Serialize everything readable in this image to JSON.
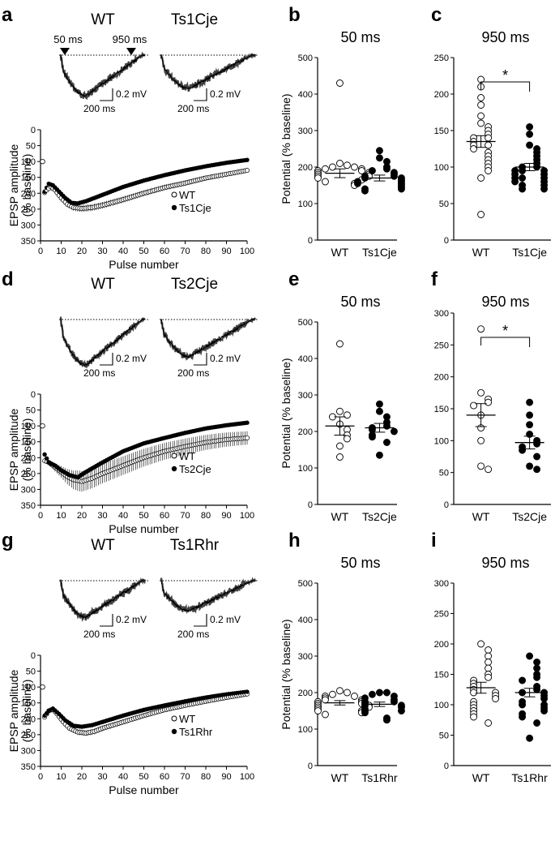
{
  "rows": [
    {
      "ids": [
        "a",
        "b",
        "c"
      ],
      "groups": [
        "WT",
        "Ts1Cje"
      ],
      "markers": [
        "50 ms",
        "950 ms"
      ],
      "scalebar": {
        "v": "0.2 mV",
        "h": "200 ms"
      },
      "dose_response": {
        "type": "line",
        "xlabel": "Pulse number",
        "ylabel": [
          "EPSP amplitude",
          "(% baseline)"
        ],
        "xlim": [
          0,
          100
        ],
        "ylim": [
          350,
          0
        ],
        "xticks": [
          "0",
          "10",
          "20",
          "30",
          "40",
          "50",
          "60",
          "70",
          "80",
          "90",
          "100"
        ],
        "yticks": [
          "0",
          "50",
          "100",
          "150",
          "200",
          "250",
          "300",
          "350"
        ],
        "legend": [
          "WT",
          "Ts1Cje"
        ],
        "series": [
          {
            "name": "WT",
            "values": [
              [
                1,
                100
              ],
              [
                2,
                198
              ],
              [
                3,
                190
              ],
              [
                5,
                180
              ],
              [
                7,
                190
              ],
              [
                10,
                215
              ],
              [
                13,
                235
              ],
              [
                16,
                245
              ],
              [
                20,
                248
              ],
              [
                25,
                245
              ],
              [
                30,
                238
              ],
              [
                40,
                220
              ],
              [
                50,
                200
              ],
              [
                60,
                182
              ],
              [
                70,
                168
              ],
              [
                80,
                152
              ],
              [
                90,
                140
              ],
              [
                100,
                128
              ]
            ]
          },
          {
            "name": "Ts1Cje",
            "values": [
              [
                2,
                195
              ],
              [
                4,
                170
              ],
              [
                6,
                175
              ],
              [
                9,
                195
              ],
              [
                12,
                215
              ],
              [
                15,
                230
              ],
              [
                18,
                232
              ],
              [
                22,
                225
              ],
              [
                30,
                205
              ],
              [
                40,
                180
              ],
              [
                50,
                160
              ],
              [
                60,
                143
              ],
              [
                70,
                128
              ],
              [
                80,
                115
              ],
              [
                90,
                104
              ],
              [
                100,
                95
              ]
            ]
          }
        ]
      },
      "scatter_50": {
        "type": "scatter",
        "title": "50 ms",
        "ylabel": "Potential (% baseline)",
        "categories": [
          "WT",
          "Ts1Cje"
        ],
        "ylim": [
          0,
          500
        ],
        "yticks": [
          "0",
          "100",
          "200",
          "300",
          "400",
          "500"
        ],
        "series": [
          {
            "name": "WT",
            "mean": 183,
            "sem": 12,
            "values": [
              430,
              210,
              205,
              200,
              200,
              195,
              195,
              190,
              190,
              185,
              185,
              180,
              180,
              175,
              175,
              170,
              165,
              160,
              155,
              150
            ]
          },
          {
            "name": "Ts1Cje",
            "mean": 170,
            "sem": 8,
            "values": [
              245,
              225,
              215,
              200,
              195,
              190,
              185,
              180,
              175,
              175,
              170,
              170,
              165,
              160,
              160,
              155,
              155,
              150,
              145,
              140,
              140,
              135
            ]
          }
        ]
      },
      "scatter_950": {
        "type": "scatter",
        "title": "950 ms",
        "ylabel": "",
        "categories": [
          "WT",
          "Ts1Cje"
        ],
        "ylim": [
          0,
          250
        ],
        "yticks": [
          "0",
          "50",
          "100",
          "150",
          "200",
          "250"
        ],
        "significance": "*",
        "series": [
          {
            "name": "WT",
            "mean": 135,
            "sem": 8,
            "values": [
              220,
              210,
              195,
              185,
              170,
              160,
              155,
              150,
              145,
              140,
              140,
              135,
              130,
              130,
              125,
              120,
              115,
              110,
              105,
              100,
              95,
              85,
              35
            ]
          },
          {
            "name": "Ts1Cje",
            "mean": 100,
            "sem": 5,
            "values": [
              155,
              145,
              130,
              125,
              120,
              115,
              110,
              105,
              100,
              100,
              95,
              95,
              95,
              90,
              90,
              85,
              85,
              85,
              80,
              80,
              75,
              75,
              70,
              70
            ]
          }
        ]
      }
    },
    {
      "ids": [
        "d",
        "e",
        "f"
      ],
      "groups": [
        "WT",
        "Ts2Cje"
      ],
      "markers": [],
      "scalebar": {
        "v": "0.2 mV",
        "h": "200 ms"
      },
      "dose_response": {
        "type": "line",
        "xlabel": "Pulse number",
        "ylabel": [
          "EPSP amplitude",
          "(% baseline)"
        ],
        "xlim": [
          0,
          100
        ],
        "ylim": [
          350,
          0
        ],
        "xticks": [
          "0",
          "10",
          "20",
          "30",
          "40",
          "50",
          "60",
          "70",
          "80",
          "90",
          "100"
        ],
        "yticks": [
          "0",
          "50",
          "100",
          "150",
          "200",
          "250",
          "300",
          "350"
        ],
        "legend": [
          "WT",
          "Ts2Cje"
        ],
        "series": [
          {
            "name": "WT",
            "values": [
              [
                1,
                100
              ],
              [
                2,
                210
              ],
              [
                4,
                215
              ],
              [
                7,
                230
              ],
              [
                10,
                245
              ],
              [
                13,
                260
              ],
              [
                16,
                270
              ],
              [
                20,
                275
              ],
              [
                25,
                265
              ],
              [
                30,
                250
              ],
              [
                40,
                225
              ],
              [
                50,
                200
              ],
              [
                60,
                180
              ],
              [
                70,
                165
              ],
              [
                80,
                152
              ],
              [
                90,
                143
              ],
              [
                100,
                138
              ]
            ]
          },
          {
            "name": "Ts2Cje",
            "values": [
              [
                2,
                190
              ],
              [
                4,
                215
              ],
              [
                7,
                225
              ],
              [
                10,
                240
              ],
              [
                14,
                255
              ],
              [
                18,
                262
              ],
              [
                22,
                245
              ],
              [
                30,
                215
              ],
              [
                40,
                180
              ],
              [
                50,
                155
              ],
              [
                60,
                138
              ],
              [
                70,
                122
              ],
              [
                80,
                108
              ],
              [
                90,
                98
              ],
              [
                100,
                90
              ]
            ]
          }
        ]
      },
      "scatter_50": {
        "type": "scatter",
        "title": "50 ms",
        "ylabel": "Potential (% baseline)",
        "categories": [
          "WT",
          "Ts2Cje"
        ],
        "ylim": [
          0,
          500
        ],
        "yticks": [
          "0",
          "100",
          "200",
          "300",
          "400",
          "500"
        ],
        "series": [
          {
            "name": "WT",
            "mean": 215,
            "sem": 25,
            "values": [
              440,
              255,
              245,
              240,
              220,
              205,
              190,
              180,
              160,
              130
            ]
          },
          {
            "name": "Ts2Cje",
            "mean": 210,
            "sem": 12,
            "values": [
              275,
              255,
              240,
              225,
              215,
              210,
              205,
              200,
              190,
              185,
              170,
              135
            ]
          }
        ]
      },
      "scatter_950": {
        "type": "scatter",
        "title": "950 ms",
        "ylabel": "",
        "categories": [
          "WT",
          "Ts2Cje"
        ],
        "ylim": [
          0,
          300
        ],
        "yticks": [
          "0",
          "50",
          "100",
          "150",
          "200",
          "250",
          "300"
        ],
        "significance": "*",
        "series": [
          {
            "name": "WT",
            "mean": 140,
            "sem": 18,
            "values": [
              275,
              175,
              165,
              160,
              155,
              140,
              120,
              100,
              60,
              55
            ]
          },
          {
            "name": "Ts2Cje",
            "mean": 97,
            "sem": 10,
            "values": [
              160,
              140,
              125,
              110,
              100,
              95,
              90,
              85,
              75,
              60,
              55
            ]
          }
        ]
      }
    },
    {
      "ids": [
        "g",
        "h",
        "i"
      ],
      "groups": [
        "WT",
        "Ts1Rhr"
      ],
      "markers": [],
      "scalebar": {
        "v": "0.2 mV",
        "h": "200 ms"
      },
      "dose_response": {
        "type": "line",
        "xlabel": "Pulse number",
        "ylabel": [
          "EPSP amplitude",
          "(% baseline)"
        ],
        "xlim": [
          0,
          100
        ],
        "ylim": [
          350,
          0
        ],
        "xticks": [
          "0",
          "10",
          "20",
          "30",
          "40",
          "50",
          "60",
          "70",
          "80",
          "90",
          "100"
        ],
        "yticks": [
          "0",
          "50",
          "100",
          "150",
          "200",
          "250",
          "300",
          "350"
        ],
        "legend": [
          "WT",
          "Ts1Rhr"
        ],
        "series": [
          {
            "name": "WT",
            "values": [
              [
                1,
                100
              ],
              [
                2,
                195
              ],
              [
                4,
                175
              ],
              [
                6,
                170
              ],
              [
                8,
                185
              ],
              [
                11,
                210
              ],
              [
                14,
                230
              ],
              [
                18,
                242
              ],
              [
                22,
                245
              ],
              [
                26,
                240
              ],
              [
                30,
                230
              ],
              [
                40,
                210
              ],
              [
                50,
                190
              ],
              [
                60,
                172
              ],
              [
                70,
                158
              ],
              [
                80,
                145
              ],
              [
                90,
                133
              ],
              [
                100,
                122
              ]
            ]
          },
          {
            "name": "Ts1Rhr",
            "values": [
              [
                2,
                190
              ],
              [
                4,
                175
              ],
              [
                6,
                168
              ],
              [
                9,
                185
              ],
              [
                12,
                205
              ],
              [
                16,
                222
              ],
              [
                20,
                225
              ],
              [
                25,
                220
              ],
              [
                30,
                210
              ],
              [
                40,
                190
              ],
              [
                50,
                172
              ],
              [
                60,
                158
              ],
              [
                70,
                145
              ],
              [
                80,
                133
              ],
              [
                90,
                123
              ],
              [
                100,
                115
              ]
            ]
          }
        ]
      },
      "scatter_50": {
        "type": "scatter",
        "title": "50 ms",
        "ylabel": "Potential (% baseline)",
        "categories": [
          "WT",
          "Ts1Rhr"
        ],
        "ylim": [
          0,
          500
        ],
        "yticks": [
          "0",
          "100",
          "200",
          "300",
          "400",
          "500"
        ],
        "series": [
          {
            "name": "WT",
            "mean": 172,
            "sem": 6,
            "values": [
              205,
              200,
              195,
              190,
              190,
              185,
              180,
              180,
              175,
              175,
              170,
              170,
              165,
              165,
              160,
              160,
              155,
              150,
              150,
              145,
              140
            ]
          },
          {
            "name": "Ts1Rhr",
            "mean": 168,
            "sem": 6,
            "values": [
              200,
              200,
              195,
              190,
              185,
              180,
              175,
              175,
              170,
              165,
              165,
              160,
              155,
              150,
              150,
              145,
              130,
              125
            ]
          }
        ]
      },
      "scatter_950": {
        "type": "scatter",
        "title": "950 ms",
        "ylabel": "",
        "categories": [
          "WT",
          "Ts1Rhr"
        ],
        "ylim": [
          0,
          300
        ],
        "yticks": [
          "0",
          "50",
          "100",
          "150",
          "200",
          "250",
          "300"
        ],
        "series": [
          {
            "name": "WT",
            "mean": 128,
            "sem": 9,
            "values": [
              200,
              190,
              180,
              170,
              160,
              150,
              145,
              140,
              135,
              130,
              125,
              120,
              120,
              115,
              110,
              105,
              100,
              95,
              90,
              85,
              80,
              70
            ]
          },
          {
            "name": "Ts1Rhr",
            "mean": 120,
            "sem": 7,
            "values": [
              180,
              170,
              160,
              150,
              145,
              140,
              130,
              125,
              120,
              120,
              115,
              110,
              105,
              100,
              100,
              95,
              90,
              85,
              80,
              70,
              45
            ]
          }
        ]
      }
    }
  ]
}
